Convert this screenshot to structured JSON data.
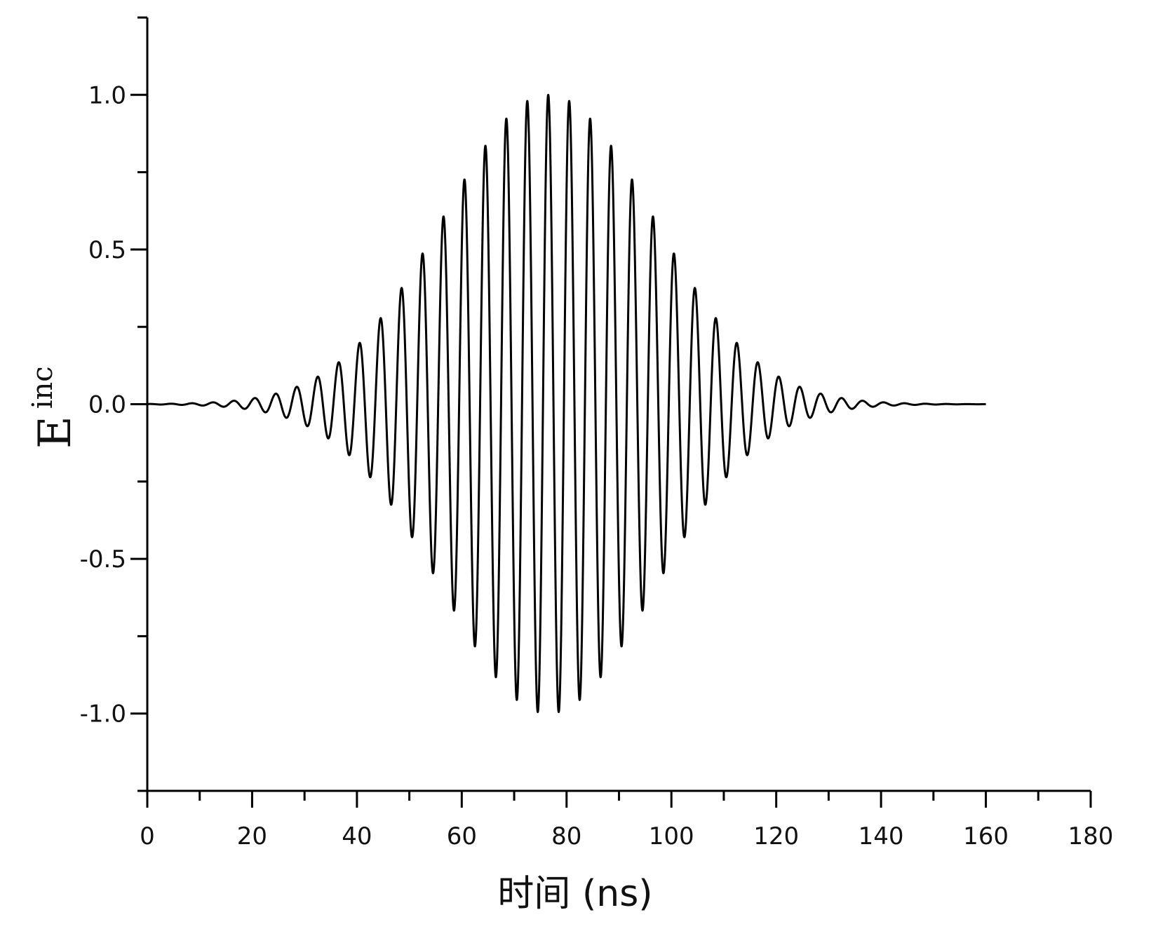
{
  "chart_data": {
    "type": "line",
    "title": "",
    "xlabel": "时间 (ns)",
    "ylabel": "E",
    "ylabel_superscript": "inc",
    "xlim": [
      0,
      180
    ],
    "ylim": [
      -1.25,
      1.25
    ],
    "x_ticks": [
      0,
      20,
      40,
      60,
      80,
      100,
      120,
      140,
      160,
      180
    ],
    "x_tick_labels": [
      "0",
      "20",
      "40",
      "60",
      "80",
      "100",
      "120",
      "140",
      "160",
      "180"
    ],
    "y_ticks": [
      -1.0,
      -0.5,
      0.0,
      0.5,
      1.0
    ],
    "y_tick_labels": [
      "-1.0",
      "-0.5",
      "0.0",
      "0.5",
      "1.0"
    ],
    "grid": false,
    "series": [
      {
        "color": "#000000",
        "signal": {
          "form": "gaussian-modulated cosine",
          "center": 76.5,
          "envelope_sigma": 20,
          "period": 4,
          "amplitude": 1.0,
          "x_start": 0,
          "x_end": 160
        }
      }
    ]
  }
}
